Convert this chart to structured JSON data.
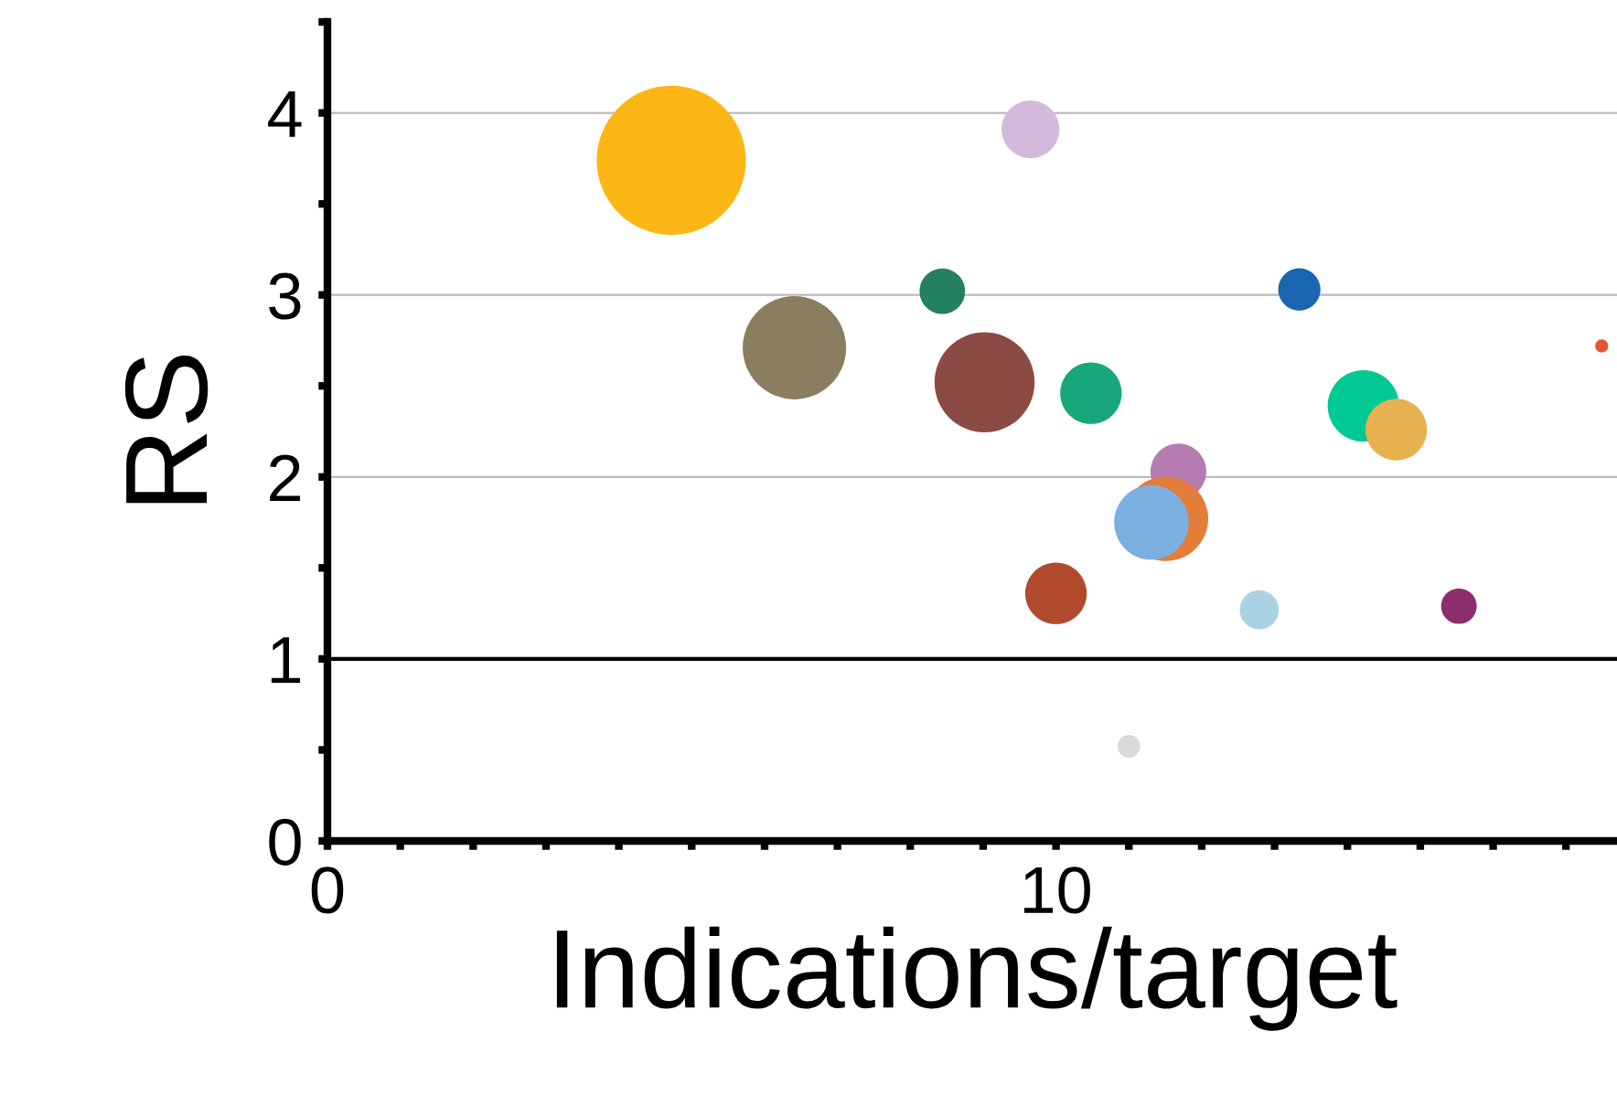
{
  "chart_data": {
    "type": "bubble",
    "xlabel": "Indications/target",
    "ylabel": "RS",
    "x": [
      4.72,
      9.65,
      8.44,
      13.34,
      6.41,
      9.02,
      10.48,
      14.22,
      14.67,
      17.49,
      11.68,
      11.51,
      11.31,
      10.0,
      12.79,
      15.53,
      11.0
    ],
    "values": [
      3.74,
      3.91,
      3.02,
      3.03,
      2.71,
      2.52,
      2.46,
      2.39,
      2.26,
      2.72,
      2.03,
      1.77,
      1.75,
      1.36,
      1.27,
      1.29,
      0.52
    ],
    "sizes": [
      1,
      0.15,
      0.093,
      0.08,
      0.48,
      0.45,
      0.17,
      0.23,
      0.17,
      0.0076,
      0.14,
      0.32,
      0.25,
      0.17,
      0.068,
      0.057,
      0.023
    ],
    "colors": [
      "#fdb714",
      "#d4b9da",
      "#238060",
      "#1a66b0",
      "#8b7d60",
      "#8b4a44",
      "#18a77a",
      "#00c994",
      "#e8b04f",
      "#e5562a",
      "#b47cb0",
      "#e47d3a",
      "#7bb0e0",
      "#b14a2c",
      "#a9d3e5",
      "#8d2d6e",
      "#d9d9d9"
    ],
    "xlim": [
      0,
      17.7
    ],
    "xticks": [
      0,
      {
        "value": 1,
        "label": null
      },
      {
        "value": 2,
        "label": null
      },
      {
        "value": 3,
        "label": null
      },
      {
        "value": 4,
        "label": null
      },
      {
        "value": 5,
        "label": null
      },
      {
        "value": 6,
        "label": null
      },
      {
        "value": 7,
        "label": null
      },
      {
        "value": 8,
        "label": null
      },
      {
        "value": 9,
        "label": null
      },
      10,
      {
        "value": 11,
        "label": null
      },
      {
        "value": 12,
        "label": null
      },
      {
        "value": 13,
        "label": null
      },
      {
        "value": 14,
        "label": null
      },
      {
        "value": 15,
        "label": null
      },
      {
        "value": 16,
        "label": null
      },
      {
        "value": 17,
        "label": null
      }
    ],
    "ylim": [
      0,
      4.5
    ],
    "yticks": [
      0,
      {
        "value": 0.5,
        "label": null
      },
      1,
      {
        "value": 1.5,
        "label": null
      },
      2,
      {
        "value": 2.5,
        "label": null
      },
      3,
      {
        "value": 3.5,
        "label": null
      },
      4,
      {
        "value": 4.5,
        "label": null
      }
    ],
    "grid": "y",
    "ref_lines": [
      {
        "axis": "y",
        "value": 1,
        "label": null,
        "color": "#000000"
      }
    ]
  }
}
